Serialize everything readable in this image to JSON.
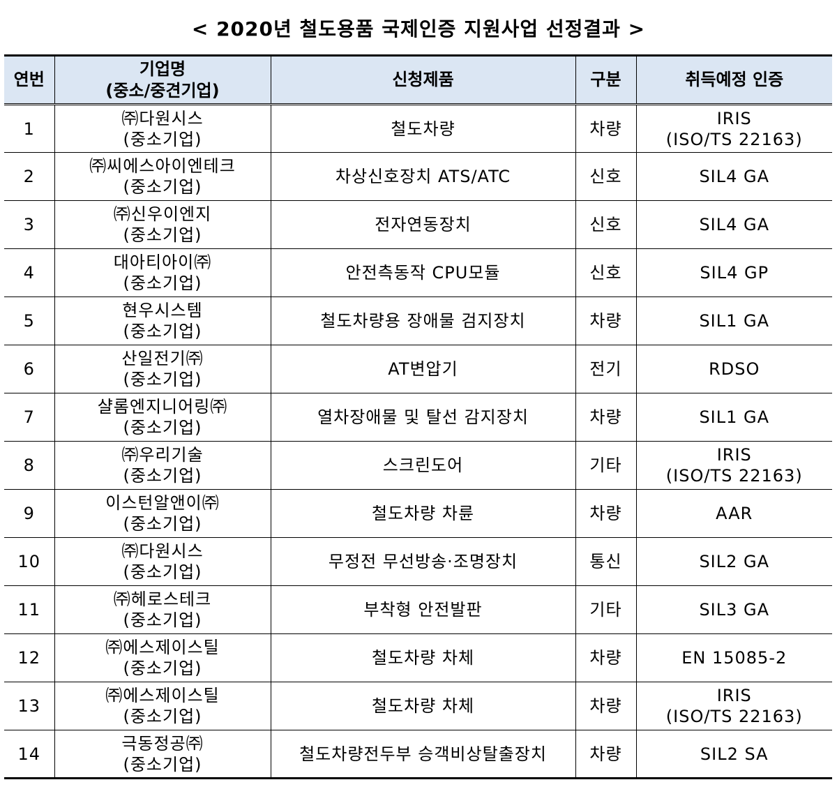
{
  "title": "< 2020년 철도용품 국제인증 지원사업 선정결과 >",
  "headers": {
    "no": "연번",
    "company_line1": "기업명",
    "company_line2": "(중소/중견기업)",
    "product": "신청제품",
    "type": "구분",
    "cert": "취득예정 인증"
  },
  "rows": [
    {
      "no": "1",
      "company": "㈜다원시스",
      "size": "(중소기업)",
      "product": "철도차량",
      "type": "차량",
      "cert_line1": "IRIS",
      "cert_line2": "(ISO/TS 22163)"
    },
    {
      "no": "2",
      "company": "㈜씨에스아이엔테크",
      "size": "(중소기업)",
      "product": "차상신호장치 ATS/ATC",
      "type": "신호",
      "cert_line1": "SIL4 GA",
      "cert_line2": ""
    },
    {
      "no": "3",
      "company": "㈜신우이엔지",
      "size": "(중소기업)",
      "product": "전자연동장치",
      "type": "신호",
      "cert_line1": "SIL4 GA",
      "cert_line2": ""
    },
    {
      "no": "4",
      "company": "대아티아이㈜",
      "size": "(중소기업)",
      "product": "안전측동작 CPU모듈",
      "type": "신호",
      "cert_line1": "SIL4 GP",
      "cert_line2": ""
    },
    {
      "no": "5",
      "company": "현우시스템",
      "size": "(중소기업)",
      "product": "철도차량용 장애물 검지장치",
      "type": "차량",
      "cert_line1": "SIL1 GA",
      "cert_line2": ""
    },
    {
      "no": "6",
      "company": "산일전기㈜",
      "size": "(중소기업)",
      "product": "AT변압기",
      "type": "전기",
      "cert_line1": "RDSO",
      "cert_line2": ""
    },
    {
      "no": "7",
      "company": "샬롬엔지니어링㈜",
      "size": "(중소기업)",
      "product": "열차장애물 및 탈선 감지장치",
      "type": "차량",
      "cert_line1": "SIL1 GA",
      "cert_line2": ""
    },
    {
      "no": "8",
      "company": "㈜우리기술",
      "size": "(중소기업)",
      "product": "스크린도어",
      "type": "기타",
      "cert_line1": "IRIS",
      "cert_line2": "(ISO/TS 22163)"
    },
    {
      "no": "9",
      "company": "이스턴알앤이㈜",
      "size": "(중소기업)",
      "product": "철도차량 차륜",
      "type": "차량",
      "cert_line1": "AAR",
      "cert_line2": ""
    },
    {
      "no": "10",
      "company": "㈜다원시스",
      "size": "(중소기업)",
      "product": "무정전 무선방송·조명장치",
      "type": "통신",
      "cert_line1": "SIL2 GA",
      "cert_line2": ""
    },
    {
      "no": "11",
      "company": "㈜헤로스테크",
      "size": "(중소기업)",
      "product": "부착형 안전발판",
      "type": "기타",
      "cert_line1": "SIL3 GA",
      "cert_line2": ""
    },
    {
      "no": "12",
      "company": "㈜에스제이스틸",
      "size": "(중소기업)",
      "product": "철도차량 차체",
      "type": "차량",
      "cert_line1": "EN 15085-2",
      "cert_line2": ""
    },
    {
      "no": "13",
      "company": "㈜에스제이스틸",
      "size": "(중소기업)",
      "product": "철도차량 차체",
      "type": "차량",
      "cert_line1": "IRIS",
      "cert_line2": "(ISO/TS 22163)"
    },
    {
      "no": "14",
      "company": "극동정공㈜",
      "size": "(중소기업)",
      "product": "철도차량전두부 승객비상탈출장치",
      "type": "차량",
      "cert_line1": "SIL2 SA",
      "cert_line2": ""
    }
  ]
}
